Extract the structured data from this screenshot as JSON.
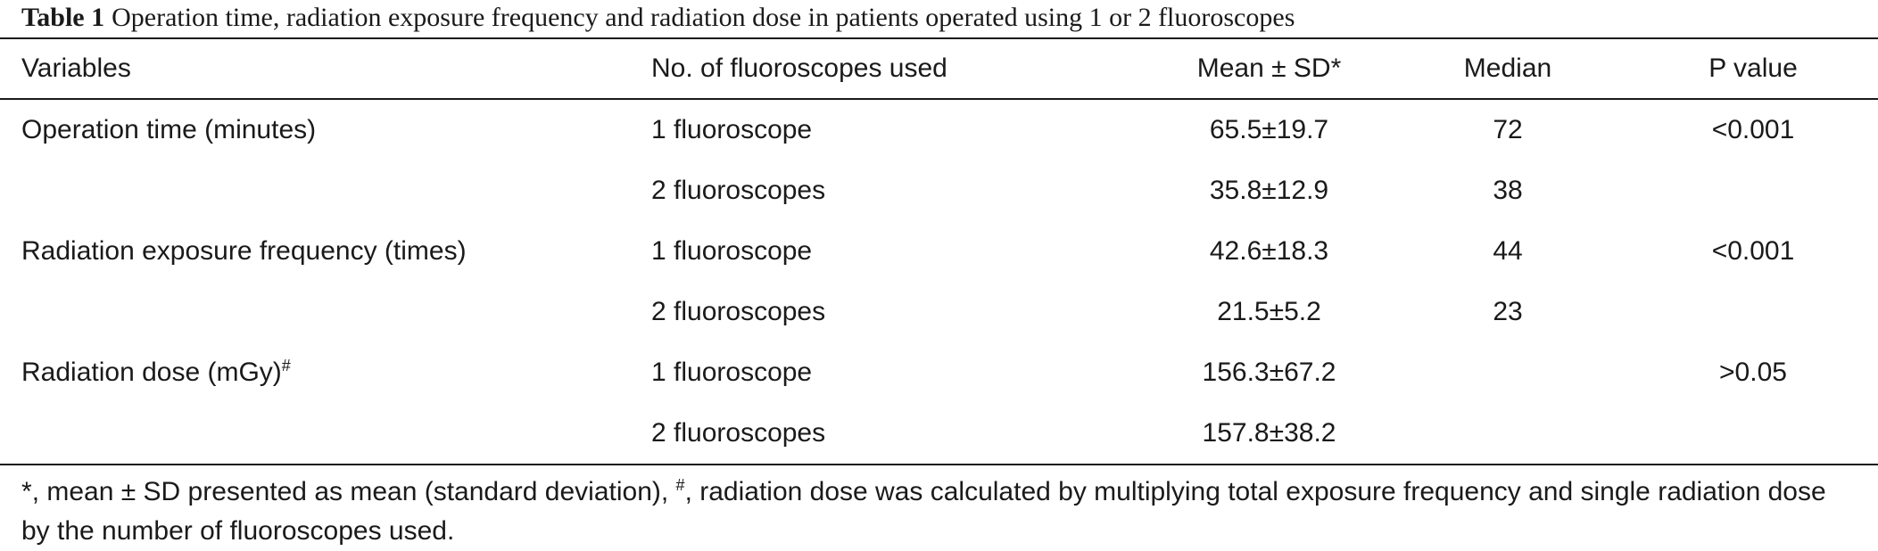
{
  "caption": {
    "label": "Table 1",
    "text": "Operation time, radiation exposure frequency and radiation dose in patients operated using 1 or 2 fluoroscopes"
  },
  "table": {
    "headers": {
      "variables": "Variables",
      "fluoroscopes": "No. of fluoroscopes used",
      "mean_sd": "Mean ± SD",
      "mean_sd_mark": "*",
      "median": "Median",
      "p_value": "P value"
    },
    "rows": [
      {
        "variable": "Operation time (minutes)",
        "mark": "",
        "fluoroscopes": "1 fluoroscope",
        "mean_sd": "65.5±19.7",
        "median": "72",
        "p_value": "<0.001"
      },
      {
        "variable": "",
        "mark": "",
        "fluoroscopes": "2 fluoroscopes",
        "mean_sd": "35.8±12.9",
        "median": "38",
        "p_value": ""
      },
      {
        "variable": "Radiation exposure frequency (times)",
        "mark": "",
        "fluoroscopes": "1 fluoroscope",
        "mean_sd": "42.6±18.3",
        "median": "44",
        "p_value": "<0.001"
      },
      {
        "variable": "",
        "mark": "",
        "fluoroscopes": "2 fluoroscopes",
        "mean_sd": "21.5±5.2",
        "median": "23",
        "p_value": ""
      },
      {
        "variable": "Radiation dose (mGy)",
        "mark": "#",
        "fluoroscopes": "1 fluoroscope",
        "mean_sd": "156.3±67.2",
        "median": "",
        "p_value": ">0.05"
      },
      {
        "variable": "",
        "mark": "",
        "fluoroscopes": "2 fluoroscopes",
        "mean_sd": "157.8±38.2",
        "median": "",
        "p_value": ""
      }
    ]
  },
  "footnote": {
    "mark1": "*",
    "text1": ", mean ± SD presented as mean (standard deviation), ",
    "mark2": "#",
    "text2": ", radiation dose was calculated by multiplying total exposure frequency and single radiation dose by the number of fluoroscopes used."
  }
}
